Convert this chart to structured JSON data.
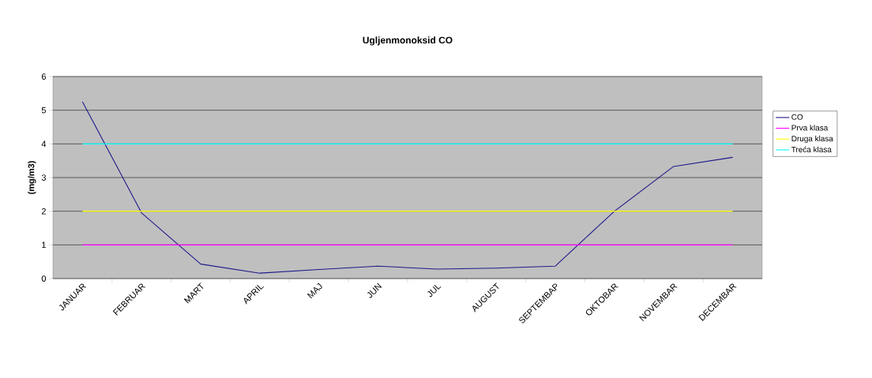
{
  "chart_data": {
    "type": "line",
    "title": "Ugljenmonoksid CO",
    "ylabel": "(mg/m3)",
    "categories": [
      "JANUAR",
      "FEBRUAR",
      "MART",
      "APRIL",
      "MAJ",
      "JUN",
      "JUL",
      "AUGUST",
      "SEPTEMBAP",
      "OKTOBAR",
      "NOVEMBAR",
      "DECEMBAR"
    ],
    "series": [
      {
        "name": "CO",
        "color": "#1f1a8a",
        "values": [
          5.25,
          1.95,
          0.43,
          0.16,
          0.27,
          0.37,
          0.28,
          0.31,
          0.37,
          2.0,
          3.33,
          3.6
        ]
      },
      {
        "name": "Prva klasa",
        "color": "#ff00ff",
        "values": [
          1,
          1,
          1,
          1,
          1,
          1,
          1,
          1,
          1,
          1,
          1,
          1
        ]
      },
      {
        "name": "Druga klasa",
        "color": "#ffff00",
        "values": [
          2,
          2,
          2,
          2,
          2,
          2,
          2,
          2,
          2,
          2,
          2,
          2
        ]
      },
      {
        "name": "Treća klasa",
        "color": "#00ffff",
        "values": [
          4,
          4,
          4,
          4,
          4,
          4,
          4,
          4,
          4,
          4,
          4,
          4
        ]
      }
    ],
    "ylim": [
      0,
      6
    ],
    "yticks": [
      0,
      1,
      2,
      3,
      4,
      5,
      6
    ],
    "grid": "y",
    "legend": "right",
    "marker": "none",
    "line_style": "solid"
  }
}
